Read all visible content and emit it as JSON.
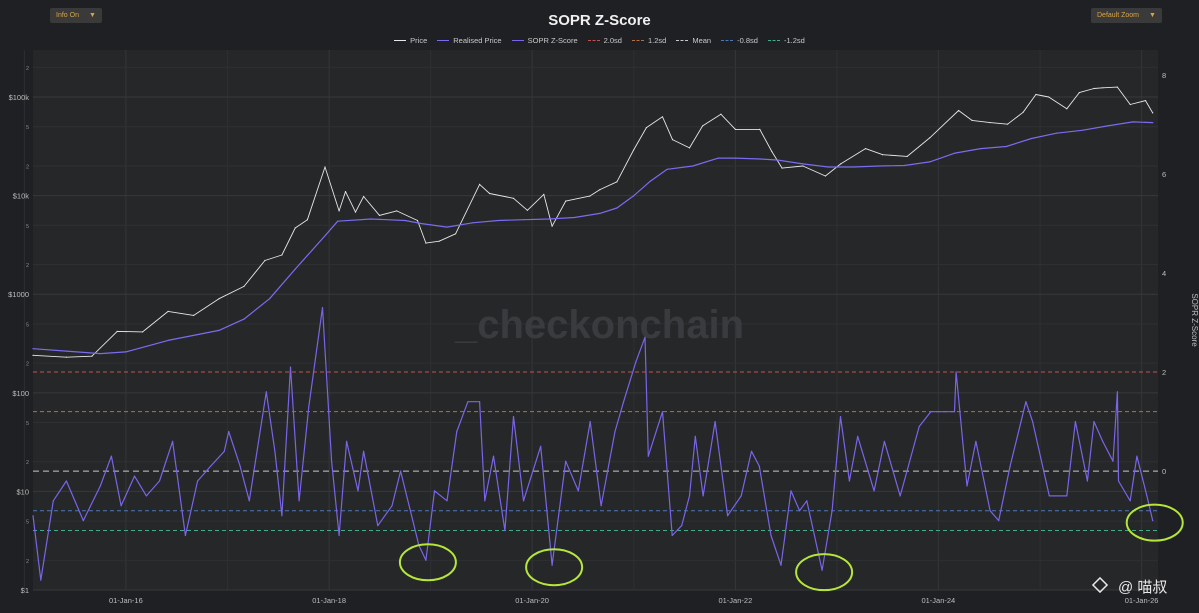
{
  "controls": {
    "info_label": "Info On",
    "zoom_label": "Default Zoom",
    "dropdown_caret": "▼"
  },
  "watermark": "_checkonchain",
  "overlay_credit": "@ 喵叔",
  "colors": {
    "background": "#1f2023",
    "plot_bg": "#262729",
    "price": "#e6e6e6",
    "realised_price": "#7a6cf0",
    "sopr_z": "#7a64e8",
    "plus_2sd": "#c0534a",
    "plus_1_2sd": "#b86e3c",
    "mean": "#c7c7c7",
    "minus_0_8sd": "#4a78b8",
    "minus_1_2sd": "#3fae88",
    "highlight_circle": "#b6e63a"
  },
  "chart_data": {
    "type": "line",
    "title": "SOPR Z-Score",
    "legend_placement": "top-center",
    "grid": true,
    "x_axis": {
      "ticks": [
        "01-Jan-16",
        "01-Jan-18",
        "01-Jan-20",
        "01-Jan-22",
        "01-Jan-24",
        "01-Jan-26"
      ],
      "range": [
        "2015-02-01",
        "2026-03-01"
      ]
    },
    "y_left": {
      "scale": "log",
      "unit": "$",
      "range": [
        1,
        300000
      ],
      "major_ticks": [
        "$1",
        "$10",
        "$100",
        "$1000",
        "$10k",
        "$100k"
      ],
      "minor_ticks": [
        "2",
        "5"
      ]
    },
    "y_right": {
      "label": "SOPR Z-Score",
      "range": [
        -2.4,
        8.5
      ],
      "ticks": [
        0,
        2,
        4,
        6,
        8
      ]
    },
    "legend": [
      "Price",
      "Realised Price",
      "SOPR Z-Score",
      "2.0sd",
      "1.2sd",
      "Mean",
      "-0.8sd",
      "-1.2sd"
    ],
    "bands": [
      {
        "name": "2.0sd",
        "value": 2.0,
        "color": "#c0534a"
      },
      {
        "name": "1.2sd",
        "value": 1.2,
        "color": "#b86e3c"
      },
      {
        "name": "Mean",
        "value": 0.0,
        "color": "#c7c7c7"
      },
      {
        "name": "-0.8sd",
        "value": -0.8,
        "color": "#4a78b8"
      },
      {
        "name": "-1.2sd",
        "value": -1.2,
        "color": "#3fae88"
      }
    ],
    "series": [
      {
        "name": "Price",
        "axis": "left",
        "color": "#e6e6e6",
        "points": [
          [
            "2015-02-01",
            240
          ],
          [
            "2015-06-01",
            230
          ],
          [
            "2015-09-01",
            235
          ],
          [
            "2015-12-01",
            420
          ],
          [
            "2016-03-01",
            415
          ],
          [
            "2016-06-01",
            670
          ],
          [
            "2016-09-01",
            610
          ],
          [
            "2016-12-01",
            900
          ],
          [
            "2017-03-01",
            1200
          ],
          [
            "2017-05-15",
            2200
          ],
          [
            "2017-07-15",
            2500
          ],
          [
            "2017-09-01",
            4700
          ],
          [
            "2017-10-15",
            5700
          ],
          [
            "2017-12-17",
            19500
          ],
          [
            "2018-02-06",
            7000
          ],
          [
            "2018-03-01",
            11000
          ],
          [
            "2018-04-06",
            6800
          ],
          [
            "2018-05-05",
            9800
          ],
          [
            "2018-07-01",
            6300
          ],
          [
            "2018-09-01",
            7000
          ],
          [
            "2018-11-15",
            5600
          ],
          [
            "2018-12-15",
            3300
          ],
          [
            "2019-02-01",
            3450
          ],
          [
            "2019-04-01",
            4100
          ],
          [
            "2019-06-26",
            13000
          ],
          [
            "2019-08-01",
            10500
          ],
          [
            "2019-10-26",
            9400
          ],
          [
            "2019-12-15",
            7100
          ],
          [
            "2020-02-12",
            10300
          ],
          [
            "2020-03-13",
            4900
          ],
          [
            "2020-05-01",
            8800
          ],
          [
            "2020-07-26",
            9900
          ],
          [
            "2020-09-01",
            11500
          ],
          [
            "2020-11-01",
            13800
          ],
          [
            "2020-12-31",
            29000
          ],
          [
            "2021-02-15",
            49000
          ],
          [
            "2021-04-14",
            63000
          ],
          [
            "2021-05-20",
            37000
          ],
          [
            "2021-07-20",
            30500
          ],
          [
            "2021-09-05",
            51000
          ],
          [
            "2021-11-10",
            67000
          ],
          [
            "2022-01-01",
            47000
          ],
          [
            "2022-03-30",
            47000
          ],
          [
            "2022-05-12",
            28000
          ],
          [
            "2022-06-18",
            19000
          ],
          [
            "2022-09-01",
            20000
          ],
          [
            "2022-11-21",
            15800
          ],
          [
            "2023-01-15",
            21000
          ],
          [
            "2023-04-14",
            30000
          ],
          [
            "2023-06-15",
            26000
          ],
          [
            "2023-09-11",
            25000
          ],
          [
            "2023-12-01",
            38500
          ],
          [
            "2024-03-14",
            73000
          ],
          [
            "2024-05-01",
            58000
          ],
          [
            "2024-07-05",
            55000
          ],
          [
            "2024-09-06",
            53000
          ],
          [
            "2024-11-01",
            70000
          ],
          [
            "2024-12-17",
            106000
          ],
          [
            "2025-02-01",
            100000
          ],
          [
            "2025-04-07",
            76000
          ],
          [
            "2025-05-22",
            111000
          ],
          [
            "2025-07-14",
            122000
          ],
          [
            "2025-08-14",
            124000
          ],
          [
            "2025-10-06",
            126000
          ],
          [
            "2025-11-21",
            84000
          ],
          [
            "2026-01-15",
            92000
          ],
          [
            "2026-02-10",
            69000
          ]
        ]
      },
      {
        "name": "Realised Price",
        "axis": "left",
        "color": "#7a6cf0",
        "points": [
          [
            "2015-02-01",
            280
          ],
          [
            "2015-06-01",
            265
          ],
          [
            "2015-10-01",
            250
          ],
          [
            "2016-01-01",
            260
          ],
          [
            "2016-06-01",
            340
          ],
          [
            "2016-12-01",
            430
          ],
          [
            "2017-03-01",
            560
          ],
          [
            "2017-06-01",
            900
          ],
          [
            "2017-09-01",
            1800
          ],
          [
            "2017-11-01",
            2800
          ],
          [
            "2017-12-20",
            4000
          ],
          [
            "2018-02-01",
            5500
          ],
          [
            "2018-06-01",
            5800
          ],
          [
            "2018-10-01",
            5600
          ],
          [
            "2018-12-01",
            5200
          ],
          [
            "2019-03-01",
            4800
          ],
          [
            "2019-06-01",
            5300
          ],
          [
            "2019-09-01",
            5600
          ],
          [
            "2019-12-01",
            5700
          ],
          [
            "2020-03-01",
            5800
          ],
          [
            "2020-06-01",
            6000
          ],
          [
            "2020-09-01",
            6600
          ],
          [
            "2020-11-01",
            7500
          ],
          [
            "2021-01-01",
            10000
          ],
          [
            "2021-03-01",
            14000
          ],
          [
            "2021-05-01",
            18500
          ],
          [
            "2021-08-01",
            20000
          ],
          [
            "2021-11-01",
            24000
          ],
          [
            "2022-01-01",
            24000
          ],
          [
            "2022-04-01",
            23500
          ],
          [
            "2022-06-01",
            23000
          ],
          [
            "2022-09-01",
            21000
          ],
          [
            "2022-12-01",
            19500
          ],
          [
            "2023-03-01",
            19500
          ],
          [
            "2023-06-01",
            20000
          ],
          [
            "2023-09-01",
            20200
          ],
          [
            "2023-12-01",
            22000
          ],
          [
            "2024-03-01",
            27000
          ],
          [
            "2024-06-01",
            30000
          ],
          [
            "2024-09-01",
            31500
          ],
          [
            "2024-12-01",
            38000
          ],
          [
            "2025-03-01",
            43000
          ],
          [
            "2025-06-01",
            46000
          ],
          [
            "2025-09-01",
            51000
          ],
          [
            "2025-12-01",
            56000
          ],
          [
            "2026-02-10",
            55000
          ]
        ]
      },
      {
        "name": "SOPR Z-Score",
        "axis": "right",
        "color": "#7a64e8",
        "points": [
          [
            "2015-02-01",
            -0.9
          ],
          [
            "2015-03-01",
            -2.2
          ],
          [
            "2015-04-15",
            -0.6
          ],
          [
            "2015-06-01",
            -0.2
          ],
          [
            "2015-08-01",
            -1.0
          ],
          [
            "2015-10-01",
            -0.3
          ],
          [
            "2015-11-10",
            0.3
          ],
          [
            "2015-12-15",
            -0.7
          ],
          [
            "2016-02-01",
            -0.1
          ],
          [
            "2016-03-15",
            -0.5
          ],
          [
            "2016-05-01",
            -0.2
          ],
          [
            "2016-06-17",
            0.6
          ],
          [
            "2016-08-02",
            -1.3
          ],
          [
            "2016-09-15",
            -0.2
          ],
          [
            "2016-11-01",
            0.1
          ],
          [
            "2016-12-20",
            0.4
          ],
          [
            "2017-01-05",
            0.8
          ],
          [
            "2017-02-15",
            0.1
          ],
          [
            "2017-03-20",
            -0.6
          ],
          [
            "2017-05-20",
            1.6
          ],
          [
            "2017-06-20",
            0.4
          ],
          [
            "2017-07-15",
            -0.9
          ],
          [
            "2017-08-15",
            2.1
          ],
          [
            "2017-09-15",
            -0.6
          ],
          [
            "2017-10-20",
            1.3
          ],
          [
            "2017-12-08",
            3.3
          ],
          [
            "2018-01-10",
            0.2
          ],
          [
            "2018-02-06",
            -1.3
          ],
          [
            "2018-03-05",
            0.6
          ],
          [
            "2018-04-15",
            -0.4
          ],
          [
            "2018-05-05",
            0.4
          ],
          [
            "2018-06-25",
            -1.1
          ],
          [
            "2018-08-15",
            -0.7
          ],
          [
            "2018-09-15",
            0.0
          ],
          [
            "2018-11-20",
            -1.5
          ],
          [
            "2018-12-15",
            -1.8
          ],
          [
            "2019-01-15",
            -0.4
          ],
          [
            "2019-03-01",
            -0.6
          ],
          [
            "2019-04-05",
            0.8
          ],
          [
            "2019-05-15",
            1.4
          ],
          [
            "2019-06-26",
            1.4
          ],
          [
            "2019-07-15",
            -0.6
          ],
          [
            "2019-08-15",
            0.3
          ],
          [
            "2019-09-25",
            -1.2
          ],
          [
            "2019-10-26",
            1.1
          ],
          [
            "2019-12-01",
            -0.6
          ],
          [
            "2020-02-01",
            0.5
          ],
          [
            "2020-03-13",
            -1.9
          ],
          [
            "2020-05-01",
            0.2
          ],
          [
            "2020-06-15",
            -0.4
          ],
          [
            "2020-07-28",
            1.0
          ],
          [
            "2020-09-05",
            -0.7
          ],
          [
            "2020-10-25",
            0.8
          ],
          [
            "2020-11-25",
            1.4
          ],
          [
            "2021-01-08",
            2.2
          ],
          [
            "2021-02-10",
            2.7
          ],
          [
            "2021-02-22",
            0.3
          ],
          [
            "2021-04-14",
            1.2
          ],
          [
            "2021-05-19",
            -1.3
          ],
          [
            "2021-06-22",
            -1.1
          ],
          [
            "2021-07-20",
            -0.5
          ],
          [
            "2021-08-10",
            0.7
          ],
          [
            "2021-09-07",
            -0.5
          ],
          [
            "2021-10-20",
            1.0
          ],
          [
            "2021-12-04",
            -0.9
          ],
          [
            "2022-01-22",
            -0.5
          ],
          [
            "2022-02-28",
            0.4
          ],
          [
            "2022-03-28",
            0.1
          ],
          [
            "2022-05-09",
            -1.3
          ],
          [
            "2022-06-14",
            -1.9
          ],
          [
            "2022-07-20",
            -0.4
          ],
          [
            "2022-08-20",
            -0.8
          ],
          [
            "2022-09-15",
            -0.6
          ],
          [
            "2022-11-09",
            -2.0
          ],
          [
            "2022-12-15",
            -0.8
          ],
          [
            "2023-01-14",
            1.1
          ],
          [
            "2023-02-15",
            -0.2
          ],
          [
            "2023-03-17",
            0.7
          ],
          [
            "2023-05-15",
            -0.4
          ],
          [
            "2023-06-21",
            0.6
          ],
          [
            "2023-08-17",
            -0.5
          ],
          [
            "2023-10-24",
            0.9
          ],
          [
            "2023-12-05",
            1.2
          ],
          [
            "2024-02-28",
            1.2
          ],
          [
            "2024-03-05",
            2.0
          ],
          [
            "2024-04-13",
            -0.3
          ],
          [
            "2024-05-15",
            0.6
          ],
          [
            "2024-07-05",
            -0.8
          ],
          [
            "2024-08-05",
            -1.0
          ],
          [
            "2024-09-15",
            0.1
          ],
          [
            "2024-11-11",
            1.4
          ],
          [
            "2024-12-05",
            1.0
          ],
          [
            "2025-02-03",
            -0.5
          ],
          [
            "2025-04-07",
            -0.5
          ],
          [
            "2025-05-08",
            1.0
          ],
          [
            "2025-06-20",
            -0.2
          ],
          [
            "2025-07-14",
            1.0
          ],
          [
            "2025-08-14",
            0.6
          ],
          [
            "2025-09-20",
            0.2
          ],
          [
            "2025-10-06",
            1.6
          ],
          [
            "2025-10-10",
            -0.2
          ],
          [
            "2025-11-21",
            -0.6
          ],
          [
            "2025-12-15",
            0.3
          ],
          [
            "2026-01-20",
            -0.5
          ],
          [
            "2026-02-10",
            -1.0
          ]
        ]
      }
    ],
    "highlighted_lows": [
      {
        "date": "2018-12-15",
        "value": -1.8
      },
      {
        "date": "2020-03-13",
        "value": -1.9
      },
      {
        "date": "2022-11-09",
        "value": -2.0
      },
      {
        "date": "2026-02-10",
        "value": -1.0
      }
    ]
  }
}
